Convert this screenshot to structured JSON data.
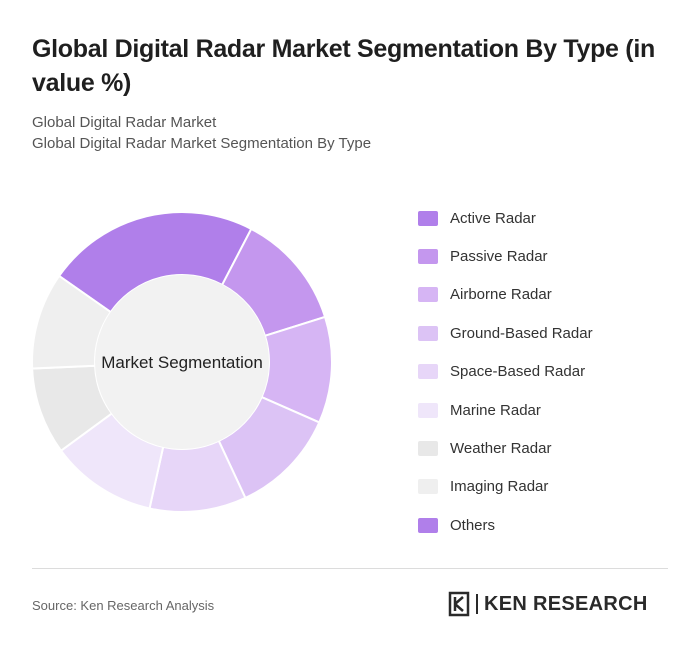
{
  "header": {
    "title": "Global Digital Radar Market Segmentation By Type (in value %)",
    "subtitle_1": "Global Digital Radar Market",
    "subtitle_2": "Global Digital Radar Market Segmentation By Type"
  },
  "chart_data": {
    "type": "pie",
    "variant": "donut",
    "center_label": "Market Segmentation",
    "categories": [
      "Active Radar",
      "Passive Radar",
      "Airborne Radar",
      "Ground-Based Radar",
      "Space-Based Radar",
      "Marine Radar",
      "Weather Radar",
      "Imaging Radar",
      "Others"
    ],
    "values": [
      22,
      12,
      11,
      11,
      10,
      11,
      9,
      10,
      0
    ],
    "colors": [
      "#b07fea",
      "#c497ee",
      "#d6b5f4",
      "#dcc3f5",
      "#e7d6f8",
      "#efe6fa",
      "#e8e8e8",
      "#efefef",
      "#b07fea"
    ],
    "legend_position": "right"
  },
  "footer": {
    "source": "Source: Ken Research Analysis",
    "logo_text": "KEN RESEARCH"
  }
}
